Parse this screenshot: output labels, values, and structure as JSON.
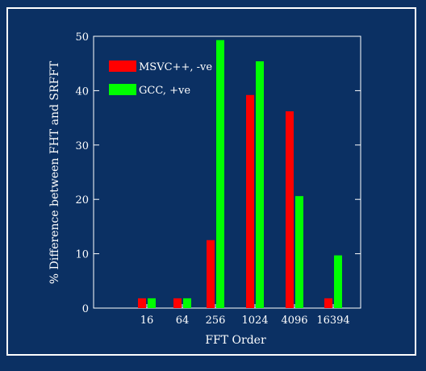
{
  "chart_data": {
    "type": "bar",
    "title": "",
    "xlabel": "FFT Order",
    "ylabel": "% Difference between FHT and SRFFT",
    "categories": [
      "16",
      "64",
      "256",
      "1024",
      "4096",
      "16394"
    ],
    "series": [
      {
        "name": "MSVC++, -ve",
        "color": "#ff0000",
        "values": [
          1.8,
          1.8,
          12.5,
          39.2,
          36.2,
          1.8
        ]
      },
      {
        "name": "GCC, +ve",
        "color": "#00ff00",
        "values": [
          1.8,
          1.8,
          49.3,
          45.4,
          20.6,
          9.7
        ]
      }
    ],
    "ylim": [
      0,
      50
    ],
    "yticks": [
      0,
      10,
      20,
      30,
      40,
      50
    ],
    "grid": false,
    "legend_position": "top-left"
  },
  "colors": {
    "background": "#0b3063",
    "axis": "#ffffff"
  }
}
